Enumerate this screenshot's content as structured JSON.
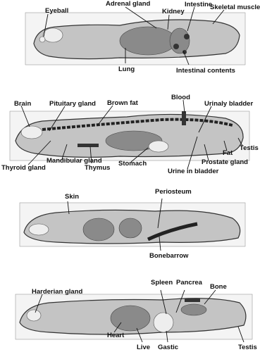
{
  "panels": [
    {
      "labels": [
        "Eyeball",
        "Adrenal gland",
        "Kidney",
        "Intestine",
        "Skeletal muscle",
        "Lung",
        "Intestinal contents"
      ]
    },
    {
      "labels": [
        "Brain",
        "Pituitary gland",
        "Brown fat",
        "Blood",
        "Urinaly bladder",
        "Thyroid gland",
        "Mandibular gland",
        "Thymus",
        "Stomach",
        "Urine in bladder",
        "Prostate gland",
        "Fat",
        "Testis"
      ]
    },
    {
      "labels": [
        "Skin",
        "Periosteum",
        "Bonebarrow"
      ]
    },
    {
      "labels": [
        "Harderian gland",
        "Spleen",
        "Pancrea",
        "Bone",
        "Heart",
        "Live",
        "Gastic",
        "Testis"
      ]
    }
  ]
}
